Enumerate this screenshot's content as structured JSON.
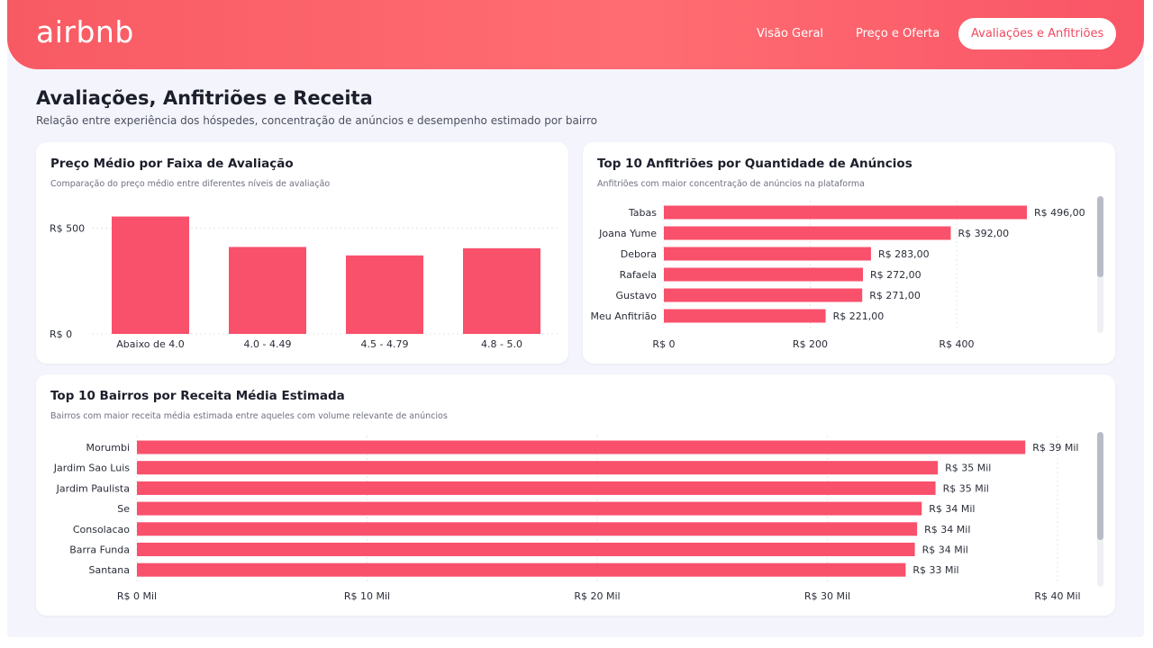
{
  "app": {
    "logo": "airbnb",
    "nav": [
      {
        "label": "Visão Geral",
        "active": false
      },
      {
        "label": "Preço e Oferta",
        "active": false
      },
      {
        "label": "Avaliações e Anfitriões",
        "active": true
      }
    ]
  },
  "page": {
    "title": "Avaliações, Anfitriões e Receita",
    "subtitle": "Relação entre experiência dos hóspedes, concentração de anúncios e desempenho estimado por bairro"
  },
  "colors": {
    "bar": "#f9506b",
    "accent": "#ff5a5f"
  },
  "cards": {
    "rating_price": {
      "title": "Preço Médio por Faixa de Avaliação",
      "subtitle": "Comparação do preço médio entre diferentes níveis de avaliação"
    },
    "top_hosts": {
      "title": "Top 10 Anfitriões por Quantidade de Anúncios",
      "subtitle": "Anfitriões com maior concentração de anúncios na plataforma"
    },
    "top_neighborhoods": {
      "title": "Top 10 Bairros por Receita Média Estimada",
      "subtitle": "Bairros com maior receita média estimada entre aqueles com volume relevante de anúncios"
    }
  },
  "chart_data": [
    {
      "type": "bar",
      "categories": [
        "Abaixo de 4.0",
        "4.0 - 4.49",
        "4.5 - 4.79",
        "4.8 - 5.0"
      ],
      "values": [
        555,
        411,
        371,
        405
      ],
      "ylim": [
        0,
        600
      ],
      "yticks": [
        {
          "value": 0,
          "label": "R$ 0"
        },
        {
          "value": 500,
          "label": "R$ 500"
        }
      ],
      "grid": true
    },
    {
      "type": "bar",
      "orientation": "horizontal",
      "categories": [
        "Tabas",
        "Joana Yume",
        "Debora",
        "Rafaela",
        "Gustavo",
        "Meu Anfitrião"
      ],
      "values": [
        496,
        392,
        283,
        272,
        271,
        221
      ],
      "value_labels": [
        "R$ 496,00",
        "R$ 392,00",
        "R$ 283,00",
        "R$ 272,00",
        "R$ 271,00",
        "R$ 221,00"
      ],
      "xlim": [
        0,
        496
      ],
      "xticks": [
        {
          "value": 0,
          "label": "R$ 0"
        },
        {
          "value": 200,
          "label": "R$ 200"
        },
        {
          "value": 400,
          "label": "R$ 400"
        }
      ],
      "grid": true
    },
    {
      "type": "bar",
      "orientation": "horizontal",
      "categories": [
        "Morumbi",
        "Jardim Sao Luis",
        "Jardim Paulista",
        "Se",
        "Consolacao",
        "Barra Funda",
        "Santana"
      ],
      "values": [
        38.6,
        34.8,
        34.7,
        34.1,
        33.9,
        33.8,
        33.4
      ],
      "value_labels": [
        "R$ 39 Mil",
        "R$ 35 Mil",
        "R$ 35 Mil",
        "R$ 34 Mil",
        "R$ 34 Mil",
        "R$ 34 Mil",
        "R$ 33 Mil"
      ],
      "xlim": [
        0,
        40
      ],
      "xticks": [
        {
          "value": 0,
          "label": "R$ 0 Mil"
        },
        {
          "value": 10,
          "label": "R$ 10 Mil"
        },
        {
          "value": 20,
          "label": "R$ 20 Mil"
        },
        {
          "value": 30,
          "label": "R$ 30 Mil"
        },
        {
          "value": 40,
          "label": "R$ 40 Mil"
        }
      ],
      "grid": true
    }
  ]
}
